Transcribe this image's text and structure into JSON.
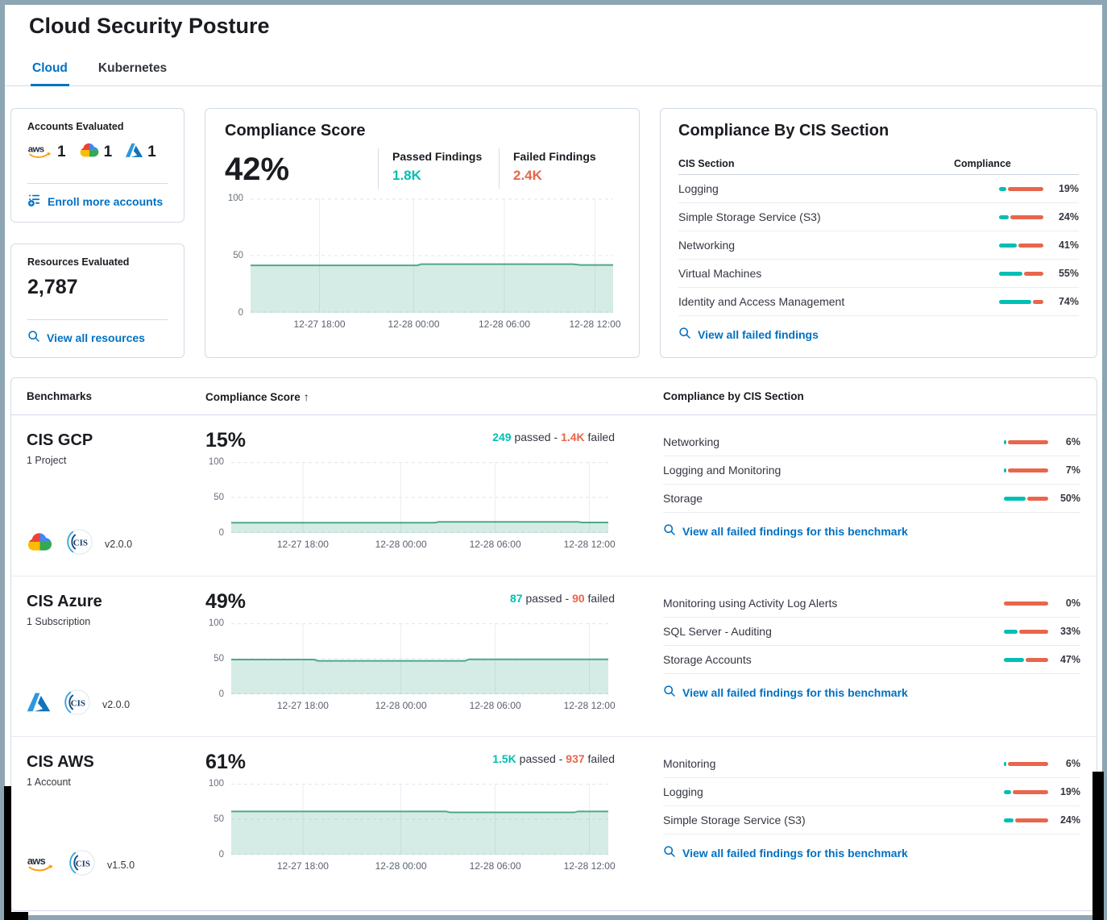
{
  "header": {
    "title": "Cloud Security Posture"
  },
  "tabs": {
    "cloud": "Cloud",
    "kubernetes": "Kubernetes"
  },
  "accounts": {
    "title": "Accounts Evaluated",
    "aws_count": "1",
    "gcp_count": "1",
    "azure_count": "1",
    "enroll_link": "Enroll more accounts"
  },
  "resources": {
    "title": "Resources Evaluated",
    "count": "2,787",
    "link": "View all resources"
  },
  "score_card": {
    "title": "Compliance Score",
    "score": "42%",
    "passed_label": "Passed Findings",
    "passed_value": "1.8K",
    "failed_label": "Failed Findings",
    "failed_value": "2.4K"
  },
  "cis_card": {
    "title": "Compliance By CIS Section",
    "col_section": "CIS Section",
    "col_compliance": "Compliance",
    "rows": [
      {
        "label": "Logging",
        "pct": 19,
        "pct_label": "19%"
      },
      {
        "label": "Simple Storage Service (S3)",
        "pct": 24,
        "pct_label": "24%"
      },
      {
        "label": "Networking",
        "pct": 41,
        "pct_label": "41%"
      },
      {
        "label": "Virtual Machines",
        "pct": 55,
        "pct_label": "55%"
      },
      {
        "label": "Identity and Access Management",
        "pct": 74,
        "pct_label": "74%"
      }
    ],
    "link": "View all failed findings"
  },
  "benchmarks": {
    "col_benchmarks": "Benchmarks",
    "col_score": "Compliance Score",
    "sort_icon": "↑",
    "col_sections": "Compliance by CIS Section",
    "passed_word": "passed",
    "failed_word": "failed",
    "sep": "-",
    "rows": [
      {
        "name": "CIS GCP",
        "subtitle": "1 Project",
        "version": "v2.0.0",
        "score": "15%",
        "passed": "249",
        "failed": "1.4K",
        "sections": [
          {
            "label": "Networking",
            "pct": 6,
            "pct_label": "6%"
          },
          {
            "label": "Logging and Monitoring",
            "pct": 7,
            "pct_label": "7%"
          },
          {
            "label": "Storage",
            "pct": 50,
            "pct_label": "50%"
          }
        ],
        "link": "View all failed findings for this benchmark"
      },
      {
        "name": "CIS Azure",
        "subtitle": "1 Subscription",
        "version": "v2.0.0",
        "score": "49%",
        "passed": "87",
        "failed": "90",
        "sections": [
          {
            "label": "Monitoring using Activity Log Alerts",
            "pct": 0,
            "pct_label": "0%"
          },
          {
            "label": "SQL Server - Auditing",
            "pct": 33,
            "pct_label": "33%"
          },
          {
            "label": "Storage Accounts",
            "pct": 47,
            "pct_label": "47%"
          }
        ],
        "link": "View all failed findings for this benchmark"
      },
      {
        "name": "CIS AWS",
        "subtitle": "1 Account",
        "version": "v1.5.0",
        "score": "61%",
        "passed": "1.5K",
        "failed": "937",
        "sections": [
          {
            "label": "Monitoring",
            "pct": 6,
            "pct_label": "6%"
          },
          {
            "label": "Logging",
            "pct": 19,
            "pct_label": "19%"
          },
          {
            "label": "Simple Storage Service (S3)",
            "pct": 24,
            "pct_label": "24%"
          }
        ],
        "link": "View all failed findings for this benchmark"
      }
    ]
  },
  "charts": {
    "x_labels": [
      "12-27 18:00",
      "12-28 00:00",
      "12-28 06:00",
      "12-28 12:00"
    ],
    "y_labels": [
      "100",
      "50",
      "0"
    ],
    "tick_positions": [
      19,
      45,
      70,
      95
    ],
    "series": {
      "overall": [
        [
          0,
          41.5
        ],
        [
          46,
          41.5
        ],
        [
          47,
          42.5
        ],
        [
          89,
          42.5
        ],
        [
          91,
          41.8
        ],
        [
          100,
          41.8
        ]
      ],
      "gcp": [
        [
          0,
          14.5
        ],
        [
          54,
          14.5
        ],
        [
          55,
          15.6
        ],
        [
          92,
          15.6
        ],
        [
          93,
          14.8
        ],
        [
          100,
          14.8
        ]
      ],
      "azure": [
        [
          0,
          48.8
        ],
        [
          22,
          48.8
        ],
        [
          23,
          47
        ],
        [
          62,
          47
        ],
        [
          63,
          49.2
        ],
        [
          100,
          49.2
        ]
      ],
      "aws": [
        [
          0,
          61
        ],
        [
          57,
          61
        ],
        [
          58,
          59.6
        ],
        [
          91,
          59.6
        ],
        [
          92,
          61
        ],
        [
          100,
          61
        ]
      ]
    }
  },
  "colors": {
    "passed": "#00BFB3",
    "failed": "#E7664C",
    "link": "#0071C2",
    "trend_line": "#4DA987",
    "trend_fill": "rgba(84,179,153,0.25)"
  }
}
